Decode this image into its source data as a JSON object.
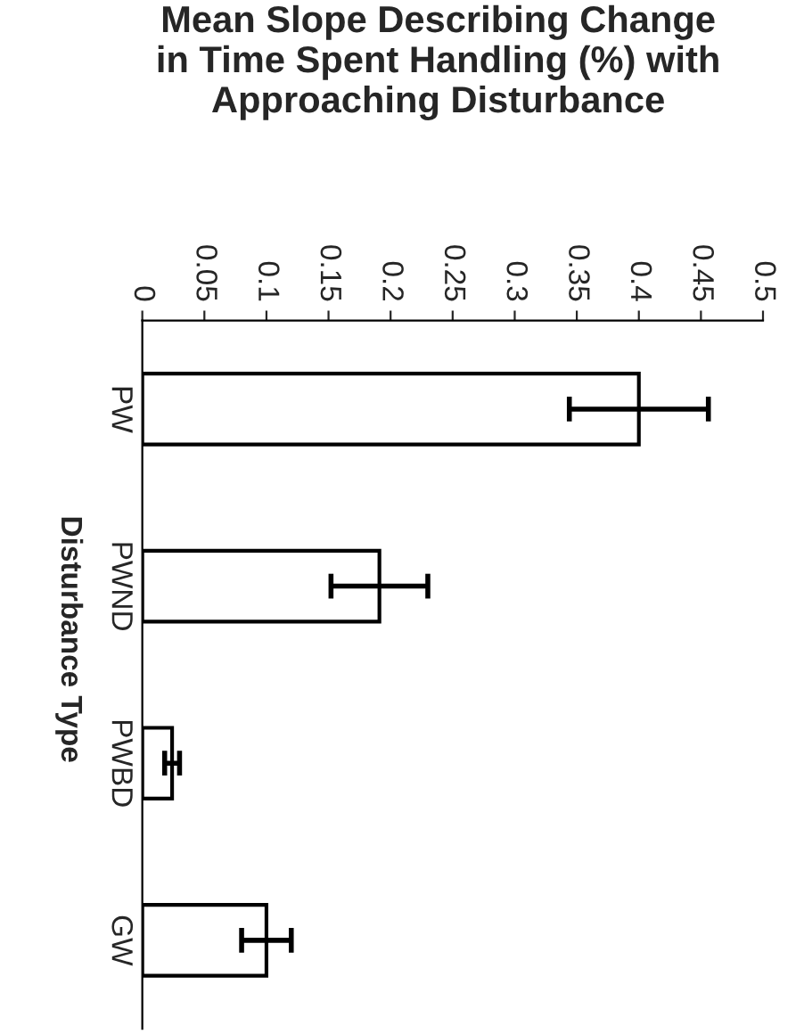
{
  "chart_data": {
    "type": "bar",
    "orientation": "horizontal",
    "title": "Mean Slope Describing Change\nin Time Spent Handling (%) with\nApproaching Disturbance",
    "ylabel": "Disturbance Type",
    "categories": [
      "PW",
      "PWND",
      "PWBD",
      "GW"
    ],
    "values": [
      0.4,
      0.191,
      0.024,
      0.1
    ],
    "errors": [
      0.056,
      0.039,
      0.006,
      0.02
    ],
    "color": "#ffffff",
    "xlim": [
      0,
      0.5
    ],
    "xticks": [
      0,
      0.05,
      0.1,
      0.15,
      0.2,
      0.25,
      0.3,
      0.35,
      0.4,
      0.45,
      0.5
    ],
    "grid": false
  }
}
